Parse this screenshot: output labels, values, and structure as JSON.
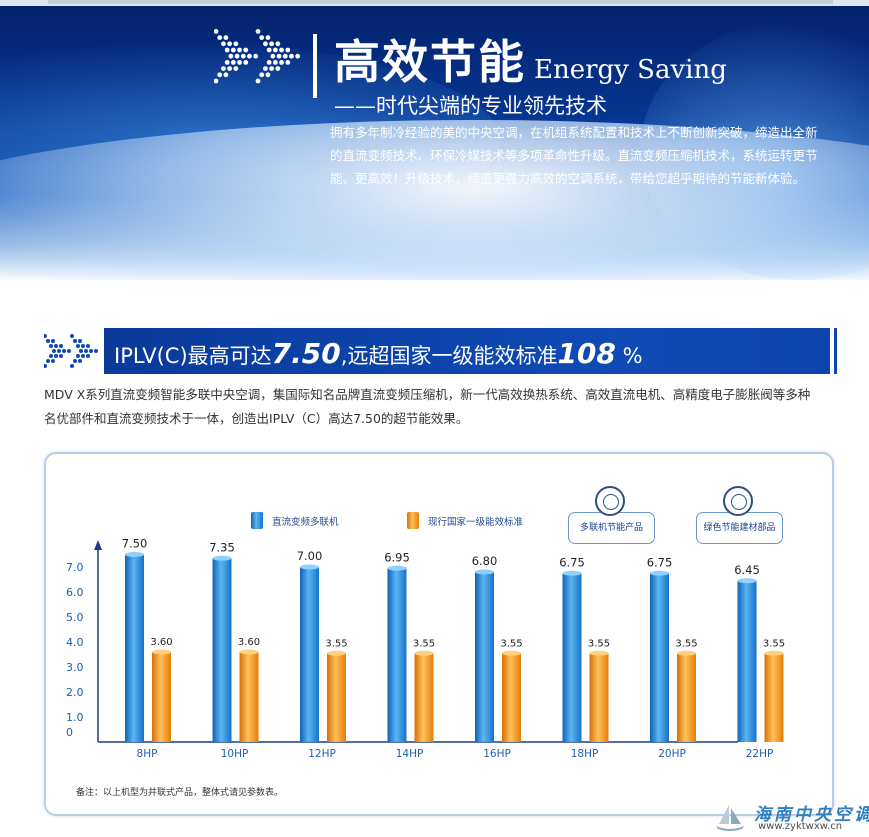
{
  "banner": {
    "title_cn": "高效节能",
    "title_en": "Energy Saving",
    "subtitle": "——时代尖端的专业领先技术",
    "intro_lines": [
      "拥有多年制冷经验的美的中央空调，在机组系统配置和技术上不断创新突破，缔造出全新",
      "的直流变频技术、环保冷媒技术等多项革命性升级。直流变频压缩机技术，系统运转更节",
      "能、更高效！升级技术，缔造更强力高效的空调系统，带给您超乎期待的节能新体验。"
    ]
  },
  "section": {
    "title_pre": "IPLV(C)最高可达",
    "title_value": "7.50",
    "title_mid": ",远超国家一级能效标准",
    "title_percent": "108",
    "title_unit": "%",
    "desc_lines": [
      "MDV X系列直流变频智能多联中央空调，集国际知名品牌直流变频压缩机，新一代高效换热系统、高效直流电机、高精度电子膨胀阀等多种",
      "名优部件和直流变频技术于一体，创造出IPLV（C）高达7.50的超节能效果。"
    ]
  },
  "chart_data": {
    "type": "bar",
    "categories": [
      "8HP",
      "10HP",
      "12HP",
      "14HP",
      "16HP",
      "18HP",
      "20HP",
      "22HP"
    ],
    "series": [
      {
        "name": "直流变频多联机",
        "values": [
          7.5,
          7.35,
          7.0,
          6.95,
          6.8,
          6.75,
          6.75,
          6.45
        ],
        "labels": [
          "7.50",
          "7.35",
          "7.00",
          "6.95",
          "6.80",
          "6.75",
          "6.75",
          "6.45"
        ],
        "color": "#1e86d6"
      },
      {
        "name": "现行国家一级能效标准",
        "values": [
          3.6,
          3.6,
          3.55,
          3.55,
          3.55,
          3.55,
          3.55,
          3.55
        ],
        "labels": [
          "3.60",
          "3.60",
          "3.55",
          "3.55",
          "3.55",
          "3.55",
          "3.55",
          "3.55"
        ],
        "color": "#f28a0f"
      }
    ],
    "yticks": [
      "0",
      "1.0",
      "2.0",
      "3.0",
      "4.0",
      "5.0",
      "6.0",
      "7.0"
    ],
    "ylim": [
      0,
      8
    ],
    "grid": false,
    "legend_position": "top-left"
  },
  "badges": [
    "多联机节能产品",
    "绿色节能建材部品"
  ],
  "footnote": "备注：以上机型为并联式产品，整体式请见参数表。",
  "watermark": {
    "name": "海南中央空调",
    "url": "www.zyktwxw.cn"
  }
}
